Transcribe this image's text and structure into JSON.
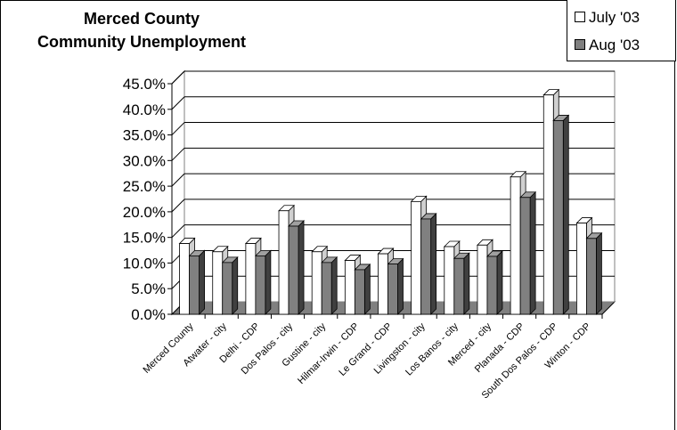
{
  "chart_data": {
    "type": "bar",
    "title": [
      "Merced County",
      "Community Unemployment"
    ],
    "categories": [
      "Merced County",
      "Atwater - city",
      "Delhi - CDP",
      "Dos Palos - city",
      "Gustine - city",
      "Hilmar-Irwin - CDP",
      "Le Grand - CDP",
      "Livingston - city",
      "Los Banos - city",
      "Merced - city",
      "Planada - CDP",
      "South Dos Palos - CDP",
      "Winton - CDP"
    ],
    "series": [
      {
        "name": "July '03",
        "color": "#ffffff",
        "values": [
          13.8,
          12.2,
          13.8,
          20.2,
          12.2,
          10.5,
          11.8,
          22.0,
          13.2,
          13.5,
          26.8,
          42.8,
          17.8
        ]
      },
      {
        "name": "Aug '03",
        "color": "#808080",
        "values": [
          11.4,
          10.1,
          11.4,
          17.2,
          10.1,
          8.7,
          9.8,
          18.6,
          10.9,
          11.3,
          22.8,
          37.8,
          14.8
        ]
      }
    ],
    "yticks": [
      "0.0%",
      "5.0%",
      "10.0%",
      "15.0%",
      "20.0%",
      "25.0%",
      "30.0%",
      "35.0%",
      "40.0%",
      "45.0%"
    ],
    "ylim": [
      0,
      45
    ],
    "grid": true,
    "legend_position": "top-right"
  }
}
